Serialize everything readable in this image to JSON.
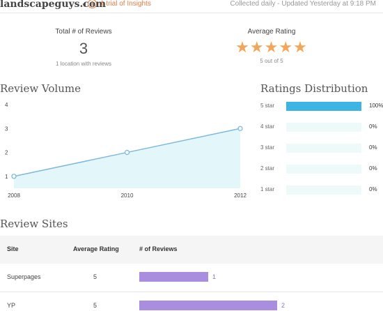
{
  "header": {
    "site_name": "landscapeguys.com",
    "caret_icon": "caret-down-icon",
    "info_icon_glyph": "i",
    "trial_text": "1 trial of Insights",
    "collected_text": "Collected daily - Updated Yesterday at 9:18 PM"
  },
  "summary": {
    "total_label": "Total # of Reviews",
    "total_value": "3",
    "total_sub": "1 location with reviews",
    "avg_label": "Average Rating",
    "avg_stars": 5,
    "avg_sub": "5 out of 5"
  },
  "volume": {
    "title": "Review Volume"
  },
  "distribution": {
    "title": "Ratings Distribution",
    "rows": [
      {
        "label": "5 star",
        "pct": "100%",
        "value": 1.0
      },
      {
        "label": "4 star",
        "pct": "0%",
        "value": 0
      },
      {
        "label": "3 star",
        "pct": "0%",
        "value": 0
      },
      {
        "label": "2 star",
        "pct": "0%",
        "value": 0
      },
      {
        "label": "1 star",
        "pct": "0%",
        "value": 0
      }
    ],
    "color_filled": "#3cb5e5",
    "color_track": "#eef9fa"
  },
  "sites": {
    "title": "Review Sites",
    "headers": {
      "site": "Site",
      "rating": "Average Rating",
      "reviews": "# of Reviews"
    },
    "rows": [
      {
        "site": "Superpages",
        "rating": "5",
        "reviews": 1,
        "reviews_label": "1"
      },
      {
        "site": "YP",
        "rating": "5",
        "reviews": 2,
        "reviews_label": "2"
      }
    ],
    "bar_color": "#a98ee0"
  },
  "chart_data": {
    "type": "area",
    "title": "Review Volume",
    "x": [
      2008,
      2010,
      2012
    ],
    "x_tick_labels": [
      "2008",
      "2010",
      "2012"
    ],
    "series": [
      {
        "values": [
          1,
          2,
          3
        ]
      }
    ],
    "y_ticks": [
      1,
      2,
      3,
      4
    ],
    "y_tick_labels": [
      "1",
      "2",
      "3",
      "4"
    ],
    "xlim": [
      2008,
      2012
    ],
    "ylim": [
      0.5,
      4
    ],
    "grid": false,
    "line_color": "#7db9de",
    "fill_color": "#e3f7fb"
  }
}
